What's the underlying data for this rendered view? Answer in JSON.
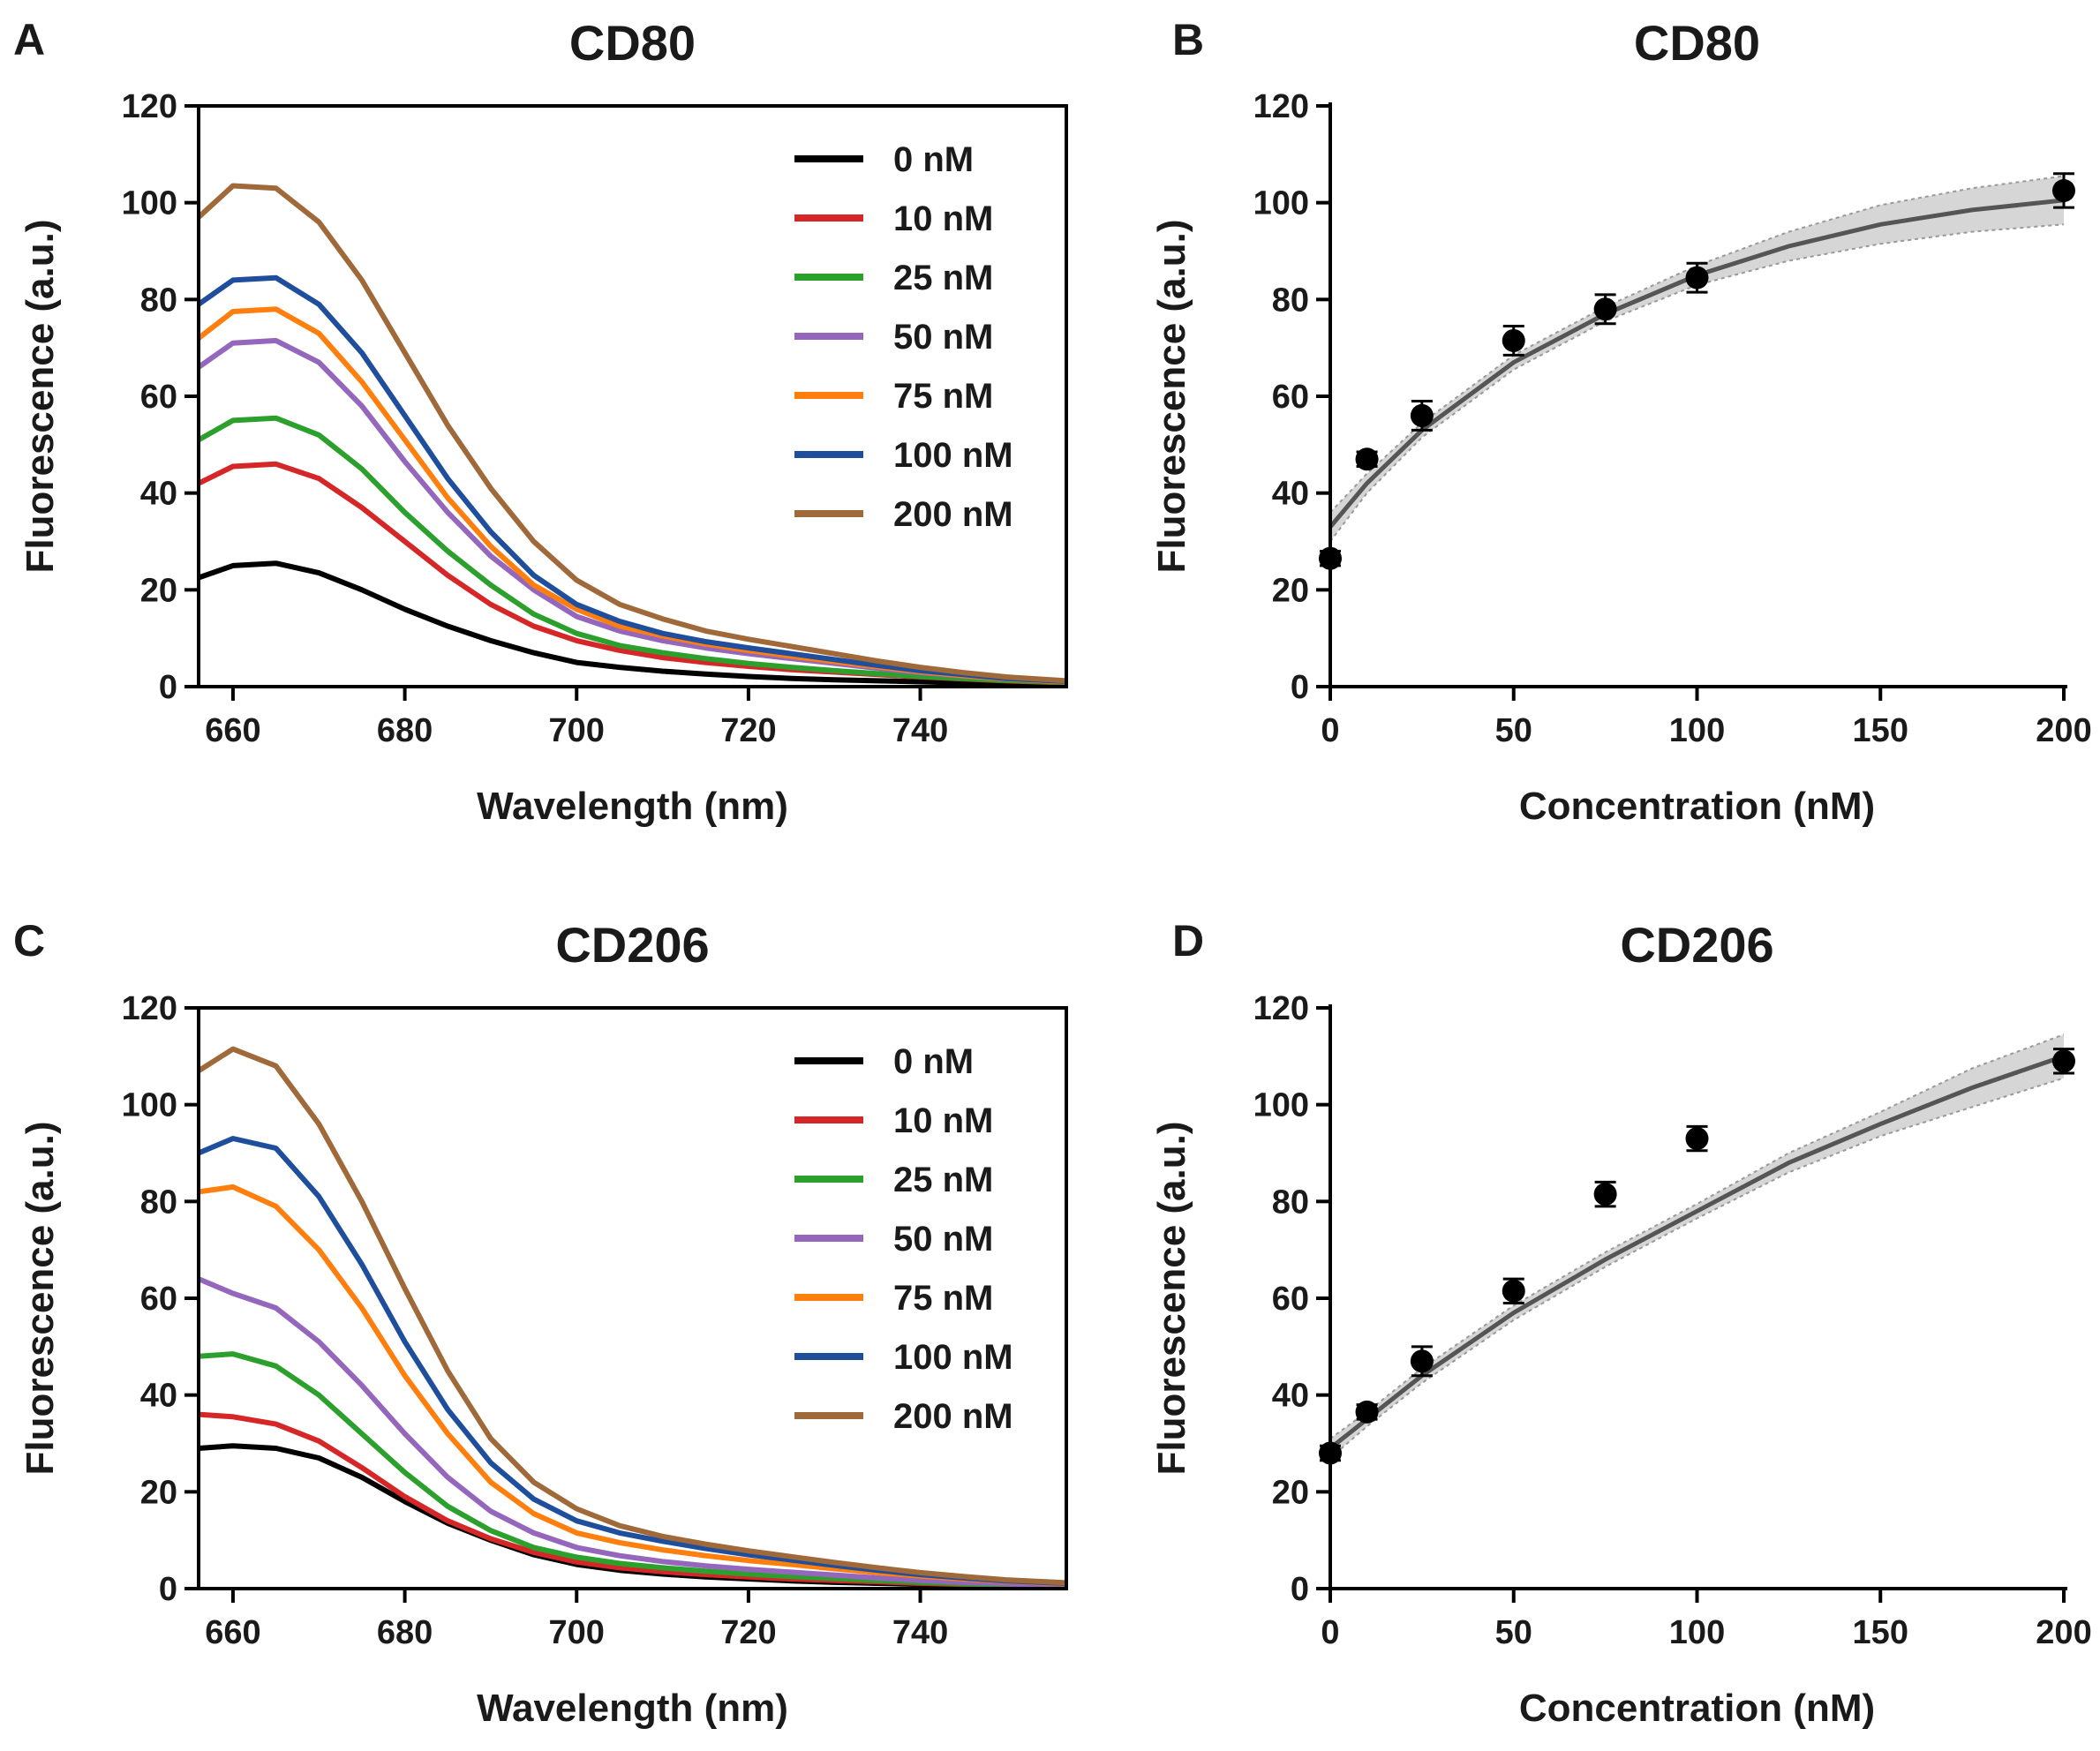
{
  "chart_data": [
    {
      "id": "A",
      "panel_label": "A",
      "type": "line",
      "title": "CD80",
      "xlabel": "Wavelength (nm)",
      "ylabel": "Fluorescence (a.u.)",
      "xlim": [
        656,
        757
      ],
      "ylim": [
        0,
        120
      ],
      "xticks": [
        660,
        680,
        700,
        720,
        740
      ],
      "yticks": [
        0,
        20,
        40,
        60,
        80,
        100,
        120
      ],
      "legend_position": "top-right",
      "series": [
        {
          "name": "0 nM",
          "color": "#000000",
          "x": [
            656,
            660,
            665,
            670,
            675,
            680,
            685,
            690,
            695,
            700,
            705,
            710,
            715,
            720,
            725,
            730,
            735,
            740,
            745,
            750,
            757
          ],
          "y": [
            22.5,
            25,
            25.5,
            23.5,
            20,
            16,
            12.5,
            9.5,
            7,
            5,
            4,
            3.2,
            2.6,
            2.1,
            1.7,
            1.4,
            1.2,
            1,
            0.8,
            0.6,
            0.5
          ]
        },
        {
          "name": "10 nM",
          "color": "#d62728",
          "x": [
            656,
            660,
            665,
            670,
            675,
            680,
            685,
            690,
            695,
            700,
            705,
            710,
            715,
            720,
            725,
            730,
            735,
            740,
            745,
            750,
            757
          ],
          "y": [
            42,
            45.5,
            46,
            43,
            37,
            30,
            23,
            17,
            12.5,
            9.5,
            7.5,
            6,
            5,
            4.2,
            3.5,
            3,
            2.5,
            2,
            1.6,
            1.2,
            0.8
          ]
        },
        {
          "name": "25 nM",
          "color": "#2ca02c",
          "x": [
            656,
            660,
            665,
            670,
            675,
            680,
            685,
            690,
            695,
            700,
            705,
            710,
            715,
            720,
            725,
            730,
            735,
            740,
            745,
            750,
            757
          ],
          "y": [
            51,
            55,
            55.5,
            52,
            45,
            36,
            28,
            21,
            15,
            11,
            8.5,
            7,
            5.8,
            4.8,
            4,
            3.3,
            2.7,
            2.1,
            1.7,
            1.3,
            0.9
          ]
        },
        {
          "name": "50 nM",
          "color": "#9467bd",
          "x": [
            656,
            660,
            665,
            670,
            675,
            680,
            685,
            690,
            695,
            700,
            705,
            710,
            715,
            720,
            725,
            730,
            735,
            740,
            745,
            750,
            757
          ],
          "y": [
            66,
            71,
            71.5,
            67,
            58,
            46.5,
            36,
            27,
            20,
            14.5,
            11.5,
            9.5,
            8,
            6.8,
            5.8,
            4.8,
            3.8,
            2.9,
            2.2,
            1.6,
            1
          ]
        },
        {
          "name": "75 nM",
          "color": "#ff7f0e",
          "x": [
            656,
            660,
            665,
            670,
            675,
            680,
            685,
            690,
            695,
            700,
            705,
            710,
            715,
            720,
            725,
            730,
            735,
            740,
            745,
            750,
            757
          ],
          "y": [
            72,
            77.5,
            78,
            73,
            63,
            51,
            39,
            29,
            21,
            16,
            12.5,
            10.5,
            8.8,
            7.5,
            6.3,
            5.2,
            4.1,
            3.1,
            2.3,
            1.6,
            1
          ]
        },
        {
          "name": "100 nM",
          "color": "#1f4e9c",
          "x": [
            656,
            660,
            665,
            670,
            675,
            680,
            685,
            690,
            695,
            700,
            705,
            710,
            715,
            720,
            725,
            730,
            735,
            740,
            745,
            750,
            757
          ],
          "y": [
            79,
            84,
            84.5,
            79,
            69,
            56,
            43,
            32,
            23,
            17,
            13.5,
            11,
            9.3,
            8,
            6.8,
            5.6,
            4.4,
            3.3,
            2.5,
            1.7,
            1.1
          ]
        },
        {
          "name": "200 nM",
          "color": "#a0693a",
          "x": [
            656,
            660,
            665,
            670,
            675,
            680,
            685,
            690,
            695,
            700,
            705,
            710,
            715,
            720,
            725,
            730,
            735,
            740,
            745,
            750,
            757
          ],
          "y": [
            97,
            103.5,
            103,
            96,
            84,
            69,
            54,
            41,
            30,
            22,
            17,
            14,
            11.5,
            9.8,
            8.3,
            6.8,
            5.3,
            4,
            2.9,
            2,
            1.2
          ]
        }
      ]
    },
    {
      "id": "B",
      "panel_label": "B",
      "type": "scatter",
      "title": "CD80",
      "xlabel": "Concentration (nM)",
      "ylabel": "Fluorescence (a.u.)",
      "xlim": [
        0,
        200
      ],
      "ylim": [
        0,
        120
      ],
      "xticks": [
        0,
        50,
        100,
        150,
        200
      ],
      "yticks": [
        0,
        20,
        40,
        60,
        80,
        100,
        120
      ],
      "points": {
        "x": [
          0,
          10,
          25,
          50,
          75,
          100,
          200
        ],
        "y": [
          26.5,
          47,
          56,
          71.5,
          78,
          84.5,
          102.5
        ],
        "err": [
          1.5,
          1.5,
          3,
          3,
          3,
          3,
          3.5
        ]
      },
      "fit": {
        "x": [
          0,
          10,
          25,
          50,
          75,
          100,
          125,
          150,
          175,
          200
        ],
        "y": [
          33,
          42,
          53,
          67,
          77,
          85,
          91,
          95.5,
          98.5,
          100.5
        ],
        "ci_lower": [
          30,
          40,
          51.5,
          65.5,
          75.5,
          83,
          88,
          91.5,
          94,
          95.5
        ],
        "ci_upper": [
          36,
          44,
          54.5,
          68.5,
          78.5,
          87,
          94,
          99.5,
          103,
          105.5
        ]
      }
    },
    {
      "id": "C",
      "panel_label": "C",
      "type": "line",
      "title": "CD206",
      "xlabel": "Wavelength (nm)",
      "ylabel": "Fluorescence (a.u.)",
      "xlim": [
        656,
        757
      ],
      "ylim": [
        0,
        120
      ],
      "xticks": [
        660,
        680,
        700,
        720,
        740
      ],
      "yticks": [
        0,
        20,
        40,
        60,
        80,
        100,
        120
      ],
      "legend_position": "top-right",
      "series": [
        {
          "name": "0 nM",
          "color": "#000000",
          "x": [
            656,
            660,
            665,
            670,
            675,
            680,
            685,
            690,
            695,
            700,
            705,
            710,
            715,
            720,
            725,
            730,
            735,
            740,
            745,
            750,
            757
          ],
          "y": [
            29,
            29.5,
            29,
            27,
            23,
            18,
            13.5,
            10,
            7,
            5,
            3.8,
            3,
            2.4,
            2,
            1.6,
            1.3,
            1.1,
            0.9,
            0.7,
            0.6,
            0.5
          ]
        },
        {
          "name": "10 nM",
          "color": "#d62728",
          "x": [
            656,
            660,
            665,
            670,
            675,
            680,
            685,
            690,
            695,
            700,
            705,
            710,
            715,
            720,
            725,
            730,
            735,
            740,
            745,
            750,
            757
          ],
          "y": [
            36,
            35.5,
            34,
            30.5,
            25,
            19,
            14,
            10.3,
            7.5,
            5.5,
            4.3,
            3.5,
            2.9,
            2.4,
            2,
            1.7,
            1.4,
            1.1,
            0.9,
            0.7,
            0.5
          ]
        },
        {
          "name": "25 nM",
          "color": "#2ca02c",
          "x": [
            656,
            660,
            665,
            670,
            675,
            680,
            685,
            690,
            695,
            700,
            705,
            710,
            715,
            720,
            725,
            730,
            735,
            740,
            745,
            750,
            757
          ],
          "y": [
            48,
            48.5,
            46,
            40,
            32,
            24,
            17,
            12,
            8.5,
            6.5,
            5.2,
            4.3,
            3.6,
            3,
            2.5,
            2.1,
            1.7,
            1.3,
            1,
            0.8,
            0.6
          ]
        },
        {
          "name": "50 nM",
          "color": "#9467bd",
          "x": [
            656,
            660,
            665,
            670,
            675,
            680,
            685,
            690,
            695,
            700,
            705,
            710,
            715,
            720,
            725,
            730,
            735,
            740,
            745,
            750,
            757
          ],
          "y": [
            64,
            61,
            58,
            51,
            42,
            32,
            23,
            16,
            11.5,
            8.5,
            6.8,
            5.6,
            4.7,
            4,
            3.4,
            2.8,
            2.2,
            1.7,
            1.3,
            1,
            0.7
          ]
        },
        {
          "name": "75 nM",
          "color": "#ff7f0e",
          "x": [
            656,
            660,
            665,
            670,
            675,
            680,
            685,
            690,
            695,
            700,
            705,
            710,
            715,
            720,
            725,
            730,
            735,
            740,
            745,
            750,
            757
          ],
          "y": [
            82,
            83,
            79,
            70,
            58,
            44,
            32,
            22,
            15.5,
            11.5,
            9.5,
            8,
            6.8,
            5.8,
            5,
            4.1,
            3.3,
            2.6,
            2,
            1.5,
            1
          ]
        },
        {
          "name": "100 nM",
          "color": "#1f4e9c",
          "x": [
            656,
            660,
            665,
            670,
            675,
            680,
            685,
            690,
            695,
            700,
            705,
            710,
            715,
            720,
            725,
            730,
            735,
            740,
            745,
            750,
            757
          ],
          "y": [
            90,
            93,
            91,
            81,
            67,
            51,
            37,
            26,
            18.5,
            14,
            11.5,
            9.8,
            8.3,
            7,
            5.9,
            4.8,
            3.8,
            2.9,
            2.2,
            1.6,
            1.1
          ]
        },
        {
          "name": "200 nM",
          "color": "#a0693a",
          "x": [
            656,
            660,
            665,
            670,
            675,
            680,
            685,
            690,
            695,
            700,
            705,
            710,
            715,
            720,
            725,
            730,
            735,
            740,
            745,
            750,
            757
          ],
          "y": [
            107,
            111.5,
            108,
            96,
            80,
            62,
            45,
            31,
            22,
            16.5,
            13,
            10.8,
            9.2,
            7.8,
            6.6,
            5.4,
            4.3,
            3.3,
            2.5,
            1.8,
            1.2
          ]
        }
      ]
    },
    {
      "id": "D",
      "panel_label": "D",
      "type": "scatter",
      "title": "CD206",
      "xlabel": "Concentration (nM)",
      "ylabel": "Fluorescence (a.u.)",
      "xlim": [
        0,
        200
      ],
      "ylim": [
        0,
        120
      ],
      "xticks": [
        0,
        50,
        100,
        150,
        200
      ],
      "yticks": [
        0,
        20,
        40,
        60,
        80,
        100,
        120
      ],
      "points": {
        "x": [
          0,
          10,
          25,
          50,
          75,
          100,
          200
        ],
        "y": [
          28,
          36.5,
          47,
          61.5,
          81.5,
          93,
          109
        ],
        "err": [
          1.5,
          1.5,
          3,
          2.5,
          2.5,
          2.5,
          2.5
        ]
      },
      "fit": {
        "x": [
          0,
          10,
          25,
          50,
          75,
          100,
          125,
          150,
          175,
          200
        ],
        "y": [
          29,
          35,
          44,
          57,
          68,
          78,
          88,
          96,
          103.5,
          110
        ],
        "ci_lower": [
          27,
          33.5,
          42.5,
          55.5,
          66.5,
          76.5,
          86,
          93.5,
          99.5,
          105.5
        ],
        "ci_upper": [
          31,
          36.5,
          45.5,
          58.5,
          69.5,
          79.5,
          90,
          98.5,
          107.5,
          114.5
        ]
      }
    }
  ]
}
